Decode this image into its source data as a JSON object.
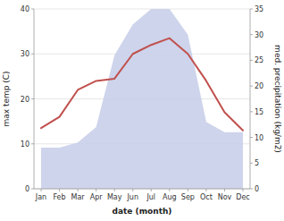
{
  "chart_data": {
    "type": "line",
    "categories": [
      "Jan",
      "Feb",
      "Mar",
      "Apr",
      "May",
      "Jun",
      "Jul",
      "Aug",
      "Sep",
      "Oct",
      "Nov",
      "Dec"
    ],
    "series": [
      {
        "type": "line",
        "color": "#c0504d",
        "values": [
          13.5,
          16,
          22,
          24,
          24.5,
          30,
          32,
          33.5,
          30,
          24,
          17,
          13
        ]
      },
      {
        "type": "area",
        "color": "#c5cce8",
        "axis": "y2",
        "values": [
          8,
          8,
          9,
          12,
          26,
          32,
          35,
          35,
          30,
          13,
          11,
          11
        ]
      }
    ],
    "xlabel": "date (month)",
    "ylabel": "max temp (C)",
    "y2label": "med. precipitation (kg/m2)",
    "ylim": [
      0,
      40
    ],
    "yticks": [
      0,
      10,
      20,
      30,
      40
    ],
    "y2lim": [
      0,
      35
    ],
    "y2ticks": [
      0,
      5,
      10,
      15,
      20,
      25,
      30,
      35
    ],
    "grid": true
  }
}
